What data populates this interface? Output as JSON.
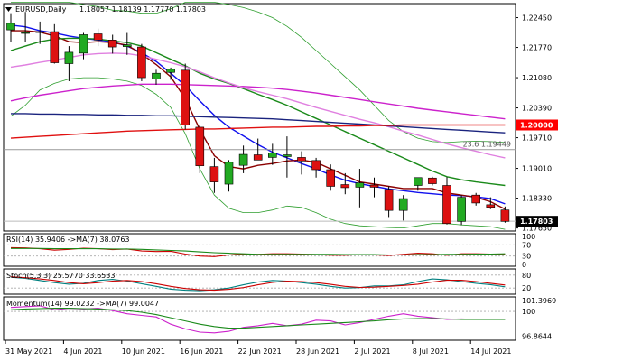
{
  "header": {
    "symbol": "EURUSD,Daily",
    "ohlc": "1.18057 1.18139 1.17770 1.17803",
    "arrow_icon": "triangle-down-icon"
  },
  "colors": {
    "bull": "#22aa22",
    "bear": "#dd1111",
    "ma_blue": "#1010ee",
    "ma_maroon": "#8b0000",
    "ma_green": "#1a8a1a",
    "ma_magenta": "#cc22cc",
    "ma_pink": "#e080e0",
    "ma_navy": "#1a237e",
    "ma_red": "#e01010",
    "bands": "#2e9e2e",
    "current_price_bg": "#000000",
    "level_bg": "#ff0000",
    "rsi_line": "#cc0000",
    "rsi_ma": "#1a8a1a",
    "stoch_k": "#008080",
    "stoch_d": "#cc0000",
    "mom_line": "#cc22cc",
    "mom_ma": "#1a8a1a"
  },
  "chart_data": [
    {
      "type": "candlestick",
      "title": "EURUSD,Daily",
      "ylim": [
        1.1758,
        1.2277
      ],
      "y_ticks": [
        "1.22450",
        "1.21770",
        "1.21080",
        "1.20390",
        "1.19710",
        "1.19010",
        "1.18330",
        "1.17650"
      ],
      "x_ticks": [
        "31 May 2021",
        "4 Jun 2021",
        "10 Jun 2021",
        "16 Jun 2021",
        "22 Jun 2021",
        "28 Jun 2021",
        "2 Jul 2021",
        "8 Jul 2021",
        "14 Jul 2021"
      ],
      "candles": [
        {
          "o": 1.2217,
          "h": 1.2255,
          "l": 1.219,
          "c": 1.2232
        },
        {
          "o": 1.2211,
          "h": 1.2258,
          "l": 1.219,
          "c": 1.2211
        },
        {
          "o": 1.2212,
          "h": 1.2236,
          "l": 1.2185,
          "c": 1.2213
        },
        {
          "o": 1.2213,
          "h": 1.223,
          "l": 1.214,
          "c": 1.2142
        },
        {
          "o": 1.214,
          "h": 1.218,
          "l": 1.21,
          "c": 1.2166
        },
        {
          "o": 1.2164,
          "h": 1.221,
          "l": 1.215,
          "c": 1.2206
        },
        {
          "o": 1.2208,
          "h": 1.222,
          "l": 1.218,
          "c": 1.2194
        },
        {
          "o": 1.2194,
          "h": 1.2206,
          "l": 1.2163,
          "c": 1.2178
        },
        {
          "o": 1.2179,
          "h": 1.221,
          "l": 1.216,
          "c": 1.2183
        },
        {
          "o": 1.2178,
          "h": 1.2185,
          "l": 1.21,
          "c": 1.2108
        },
        {
          "o": 1.2105,
          "h": 1.2126,
          "l": 1.2092,
          "c": 1.2118
        },
        {
          "o": 1.212,
          "h": 1.2131,
          "l": 1.2103,
          "c": 1.2127
        },
        {
          "o": 1.2125,
          "h": 1.214,
          "l": 1.199,
          "c": 1.2
        },
        {
          "o": 1.1995,
          "h": 1.2001,
          "l": 1.189,
          "c": 1.1907
        },
        {
          "o": 1.1905,
          "h": 1.1925,
          "l": 1.1845,
          "c": 1.187
        },
        {
          "o": 1.1865,
          "h": 1.192,
          "l": 1.1848,
          "c": 1.1915
        },
        {
          "o": 1.1908,
          "h": 1.1953,
          "l": 1.189,
          "c": 1.1933
        },
        {
          "o": 1.1932,
          "h": 1.1969,
          "l": 1.1921,
          "c": 1.192
        },
        {
          "o": 1.1926,
          "h": 1.1957,
          "l": 1.1909,
          "c": 1.1936
        },
        {
          "o": 1.1928,
          "h": 1.1974,
          "l": 1.188,
          "c": 1.1932
        },
        {
          "o": 1.1926,
          "h": 1.194,
          "l": 1.1887,
          "c": 1.1918
        },
        {
          "o": 1.1919,
          "h": 1.1925,
          "l": 1.188,
          "c": 1.1898
        },
        {
          "o": 1.1898,
          "h": 1.191,
          "l": 1.185,
          "c": 1.186
        },
        {
          "o": 1.1864,
          "h": 1.189,
          "l": 1.1842,
          "c": 1.1857
        },
        {
          "o": 1.1858,
          "h": 1.19,
          "l": 1.1812,
          "c": 1.1868
        },
        {
          "o": 1.1863,
          "h": 1.188,
          "l": 1.1835,
          "c": 1.1858
        },
        {
          "o": 1.1853,
          "h": 1.186,
          "l": 1.179,
          "c": 1.1805
        },
        {
          "o": 1.1805,
          "h": 1.184,
          "l": 1.1782,
          "c": 1.1832
        },
        {
          "o": 1.1862,
          "h": 1.188,
          "l": 1.185,
          "c": 1.188
        },
        {
          "o": 1.1879,
          "h": 1.1882,
          "l": 1.1862,
          "c": 1.1866
        },
        {
          "o": 1.1862,
          "h": 1.1881,
          "l": 1.1773,
          "c": 1.1775
        },
        {
          "o": 1.178,
          "h": 1.184,
          "l": 1.1772,
          "c": 1.1835
        },
        {
          "o": 1.184,
          "h": 1.1845,
          "l": 1.1816,
          "c": 1.1822
        },
        {
          "o": 1.1818,
          "h": 1.1835,
          "l": 1.1808,
          "c": 1.1812
        },
        {
          "o": 1.1806,
          "h": 1.1814,
          "l": 1.1777,
          "c": 1.178
        }
      ],
      "moving_averages": [
        {
          "color_key": "ma_blue",
          "values": [
            1.2228,
            1.2224,
            1.2215,
            1.221,
            1.2203,
            1.2198,
            1.2194,
            1.219,
            1.218,
            1.2165,
            1.2145,
            1.2118,
            1.209,
            1.2055,
            1.2022,
            1.1995,
            1.1975,
            1.1955,
            1.1938,
            1.1925,
            1.1912,
            1.19,
            1.1886,
            1.1874,
            1.1866,
            1.186,
            1.1854,
            1.185,
            1.1846,
            1.1843,
            1.184,
            1.1839,
            1.1836,
            1.1832,
            1.182
          ]
        },
        {
          "color_key": "ma_maroon",
          "values": [
            1.2215,
            1.2215,
            1.2212,
            1.2203,
            1.219,
            1.2188,
            1.219,
            1.2188,
            1.2182,
            1.2162,
            1.2138,
            1.211,
            1.206,
            1.199,
            1.193,
            1.1905,
            1.19,
            1.1908,
            1.1912,
            1.1918,
            1.192,
            1.1915,
            1.19,
            1.1885,
            1.187,
            1.1865,
            1.186,
            1.1855,
            1.1855,
            1.1855,
            1.1845,
            1.184,
            1.1835,
            1.1825,
            1.1808
          ]
        },
        {
          "color_key": "ma_green",
          "values": [
            1.217,
            1.218,
            1.219,
            1.2196,
            1.2198,
            1.2198,
            1.2196,
            1.2192,
            1.2188,
            1.218,
            1.2165,
            1.215,
            1.2135,
            1.2118,
            1.2105,
            1.2095,
            1.2083,
            1.207,
            1.2058,
            1.2045,
            1.203,
            1.2015,
            1.2,
            1.1985,
            1.197,
            1.1955,
            1.194,
            1.1925,
            1.191,
            1.1895,
            1.1882,
            1.1875,
            1.187,
            1.1866,
            1.1862
          ]
        },
        {
          "color_key": "ma_magenta",
          "values": [
            1.2055,
            1.2062,
            1.2068,
            1.2073,
            1.2078,
            1.2083,
            1.2086,
            1.2089,
            1.2091,
            1.2093,
            1.2093,
            1.2093,
            1.2092,
            1.2091,
            1.209,
            1.2089,
            1.2088,
            1.2086,
            1.2084,
            1.2081,
            1.2077,
            1.2073,
            1.2068,
            1.2063,
            1.2058,
            1.2053,
            1.2048,
            1.2043,
            1.2038,
            1.2034,
            1.203,
            1.2026,
            1.2022,
            1.2018,
            1.2014
          ]
        },
        {
          "color_key": "ma_pink",
          "values": [
            1.2132,
            1.2137,
            1.2143,
            1.2148,
            1.2154,
            1.216,
            1.2163,
            1.2164,
            1.2163,
            1.2158,
            1.215,
            1.2142,
            1.2133,
            1.2121,
            1.2108,
            1.2096,
            1.2085,
            1.2076,
            1.2068,
            1.206,
            1.205,
            1.204,
            1.2031,
            1.2022,
            1.2013,
            1.2005,
            1.1996,
            1.1986,
            1.1977,
            1.1967,
            1.1957,
            1.1948,
            1.194,
            1.1932,
            1.1925
          ]
        },
        {
          "color_key": "ma_navy",
          "values": [
            1.2026,
            1.2026,
            1.2025,
            1.2025,
            1.2024,
            1.2024,
            1.2023,
            1.2023,
            1.2022,
            1.2022,
            1.2021,
            1.2021,
            1.202,
            1.2019,
            1.2018,
            1.2017,
            1.2016,
            1.2015,
            1.2014,
            1.2012,
            1.201,
            1.2008,
            1.2006,
            1.2004,
            1.2002,
            1.2,
            1.1998,
            1.1996,
            1.1994,
            1.1992,
            1.199,
            1.1988,
            1.1986,
            1.1984,
            1.1982
          ]
        },
        {
          "color_key": "ma_red",
          "values": [
            1.197,
            1.1972,
            1.1974,
            1.1976,
            1.1978,
            1.198,
            1.1982,
            1.1984,
            1.1986,
            1.1987,
            1.1988,
            1.1989,
            1.199,
            1.1991,
            1.1991,
            1.1992,
            1.1993,
            1.1994,
            1.1995,
            1.1995,
            1.1996,
            1.1997,
            1.1997,
            1.1998,
            1.1998,
            1.1999,
            1.1999,
            1.2,
            1.2,
            1.2,
            1.2,
            1.2,
            1.2,
            1.2,
            1.2
          ]
        }
      ],
      "bands": {
        "upper": [
          1.228,
          1.228,
          1.228,
          1.228,
          1.228,
          1.2275,
          1.227,
          1.2262,
          1.226,
          1.2255,
          1.2255,
          1.2265,
          1.228,
          1.228,
          1.228,
          1.2275,
          1.2268,
          1.2258,
          1.2245,
          1.2225,
          1.22,
          1.217,
          1.214,
          1.211,
          1.208,
          1.2045,
          1.201,
          1.1985,
          1.197,
          1.1962,
          1.196,
          1.1962,
          1.1963,
          1.1962,
          1.196
        ],
        "lower": [
          1.202,
          1.2045,
          1.208,
          1.2095,
          1.2105,
          1.2108,
          1.2108,
          1.2105,
          1.21,
          1.209,
          1.207,
          1.204,
          1.198,
          1.19,
          1.184,
          1.181,
          1.18,
          1.18,
          1.1806,
          1.1815,
          1.1812,
          1.18,
          1.1785,
          1.1775,
          1.177,
          1.1768,
          1.1766,
          1.1765,
          1.177,
          1.1775,
          1.1775,
          1.1772,
          1.177,
          1.1768,
          1.1762
        ]
      },
      "levels": [
        {
          "value": 1.2,
          "label": "1.20000",
          "style": "dashed",
          "color_key": "ma_red"
        },
        {
          "value": 1.1944,
          "label": "23.6 1.19449",
          "style": "solid",
          "color": "#999999"
        },
        {
          "value": 1.17803,
          "label": "1.17803",
          "style": "solid",
          "color": "#bbbbbb"
        }
      ]
    },
    {
      "type": "line",
      "title": "RSI(14) 35.9406 ->MA(7) 38.0763",
      "y_ticks": [
        "100",
        "70",
        "30",
        "0"
      ],
      "ylim": [
        0,
        100
      ],
      "series": [
        {
          "color_key": "rsi_line",
          "values": [
            60,
            59,
            56,
            51,
            54,
            58,
            56,
            53,
            55,
            48,
            46,
            47,
            37,
            30,
            28,
            34,
            37,
            36,
            38,
            38,
            37,
            35,
            33,
            33,
            35,
            34,
            32,
            36,
            40,
            38,
            33,
            38,
            38,
            37,
            36
          ]
        },
        {
          "color_key": "rsi_ma",
          "values": [
            57,
            57,
            57,
            56,
            56,
            56,
            56,
            55,
            55,
            54,
            52,
            50,
            48,
            45,
            42,
            40,
            38,
            36,
            36,
            36,
            36,
            36,
            36,
            35,
            35,
            35,
            34,
            34,
            35,
            35,
            36,
            36,
            37,
            37,
            38
          ]
        }
      ]
    },
    {
      "type": "line",
      "title": "Stoch(5,3,3) 25.5770 33.6533",
      "y_ticks": [
        "80",
        "20"
      ],
      "ylim": [
        0,
        100
      ],
      "series": [
        {
          "color_key": "stoch_k",
          "values": [
            70,
            65,
            55,
            45,
            38,
            42,
            55,
            60,
            52,
            40,
            28,
            15,
            10,
            8,
            12,
            20,
            35,
            48,
            55,
            52,
            45,
            38,
            28,
            20,
            22,
            30,
            30,
            35,
            50,
            62,
            58,
            50,
            42,
            36,
            26
          ]
        },
        {
          "color_key": "stoch_d",
          "values": [
            72,
            68,
            62,
            55,
            45,
            40,
            45,
            52,
            55,
            50,
            40,
            28,
            18,
            12,
            10,
            14,
            22,
            35,
            46,
            52,
            50,
            45,
            37,
            28,
            23,
            24,
            28,
            32,
            38,
            48,
            56,
            56,
            50,
            42,
            34
          ]
        }
      ]
    },
    {
      "type": "line",
      "title": "Momentum(14) 99.0232 ->MA(7) 99.0047",
      "y_ticks": [
        "101.3969",
        "100",
        "96.8644"
      ],
      "ylim": [
        96.6,
        101.6
      ],
      "series": [
        {
          "color_key": "mom_line",
          "values": [
            100.5,
            100.6,
            100.7,
            100.2,
            100.4,
            100.3,
            100.4,
            100.1,
            99.7,
            99.5,
            99.3,
            98.4,
            97.8,
            97.4,
            97.3,
            97.5,
            98.0,
            98.2,
            98.5,
            98.2,
            98.4,
            98.9,
            98.8,
            98.3,
            98.6,
            99.0,
            99.4,
            99.7,
            99.4,
            99.2,
            99.0,
            99.05,
            99.0,
            99.0,
            99.02
          ]
        },
        {
          "color_key": "mom_ma",
          "values": [
            100.2,
            100.3,
            100.35,
            100.4,
            100.4,
            100.35,
            100.3,
            100.2,
            100.1,
            99.9,
            99.6,
            99.2,
            98.8,
            98.4,
            98.1,
            97.9,
            97.9,
            98.0,
            98.1,
            98.2,
            98.3,
            98.4,
            98.5,
            98.6,
            98.7,
            98.8,
            98.95,
            99.05,
            99.1,
            99.1,
            99.05,
            99.0,
            99.0,
            99.0,
            99.0
          ]
        }
      ]
    }
  ]
}
